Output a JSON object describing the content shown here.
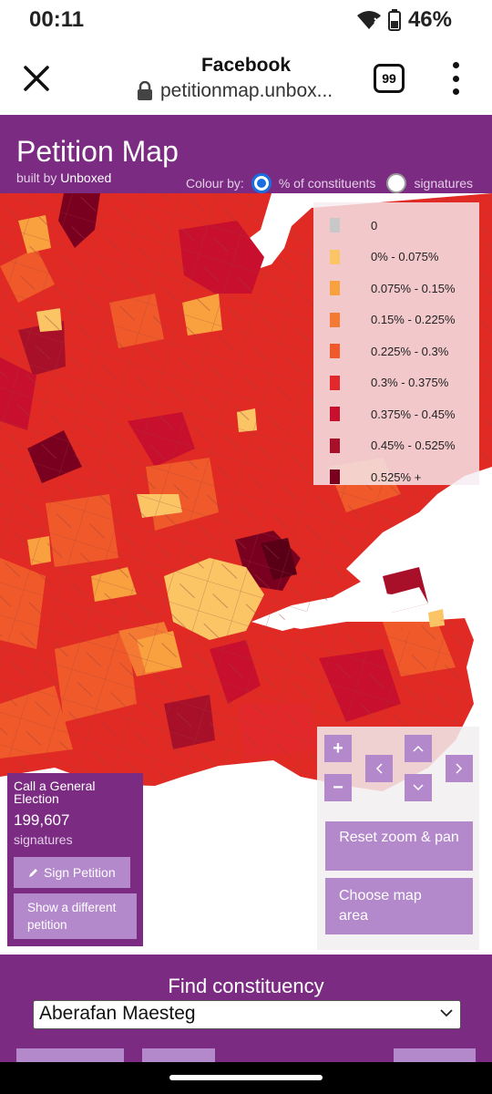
{
  "status": {
    "time": "00:11",
    "battery": "46%"
  },
  "browser": {
    "title": "Facebook",
    "url": "petitionmap.unbox...",
    "tabs_count": "99"
  },
  "header": {
    "title": "Petition Map",
    "built_by_prefix": "built by",
    "built_by_name": "Unboxed",
    "colour_by_label": "Colour by:",
    "options": [
      {
        "label": "% of constituents",
        "selected": true
      },
      {
        "label": "signatures",
        "selected": false
      }
    ]
  },
  "legend": [
    {
      "label": "0",
      "color": "#c8c8c8"
    },
    {
      "label": "0% - 0.075%",
      "color": "#fbc565"
    },
    {
      "label": "0.075% - 0.15%",
      "color": "#f9a03f"
    },
    {
      "label": "0.15% - 0.225%",
      "color": "#f47a34"
    },
    {
      "label": "0.225% - 0.3%",
      "color": "#f05a2a"
    },
    {
      "label": "0.3% - 0.375%",
      "color": "#e2282a"
    },
    {
      "label": "0.375% - 0.45%",
      "color": "#c8102e"
    },
    {
      "label": "0.45% - 0.525%",
      "color": "#a8102a"
    },
    {
      "label": "0.525% +",
      "color": "#7a0020"
    }
  ],
  "petition": {
    "name": "Call a General Election",
    "signature_count": "199,607",
    "signature_label": "signatures",
    "sign_button": "Sign Petition",
    "show_different_button": "Show a different petition"
  },
  "zoom_controls": {
    "zoom_in": "+",
    "zoom_out": "−",
    "reset_button": "Reset zoom & pan",
    "choose_area_button": "Choose map area"
  },
  "find": {
    "title": "Find constituency",
    "selected": "Aberafan Maesteg"
  }
}
